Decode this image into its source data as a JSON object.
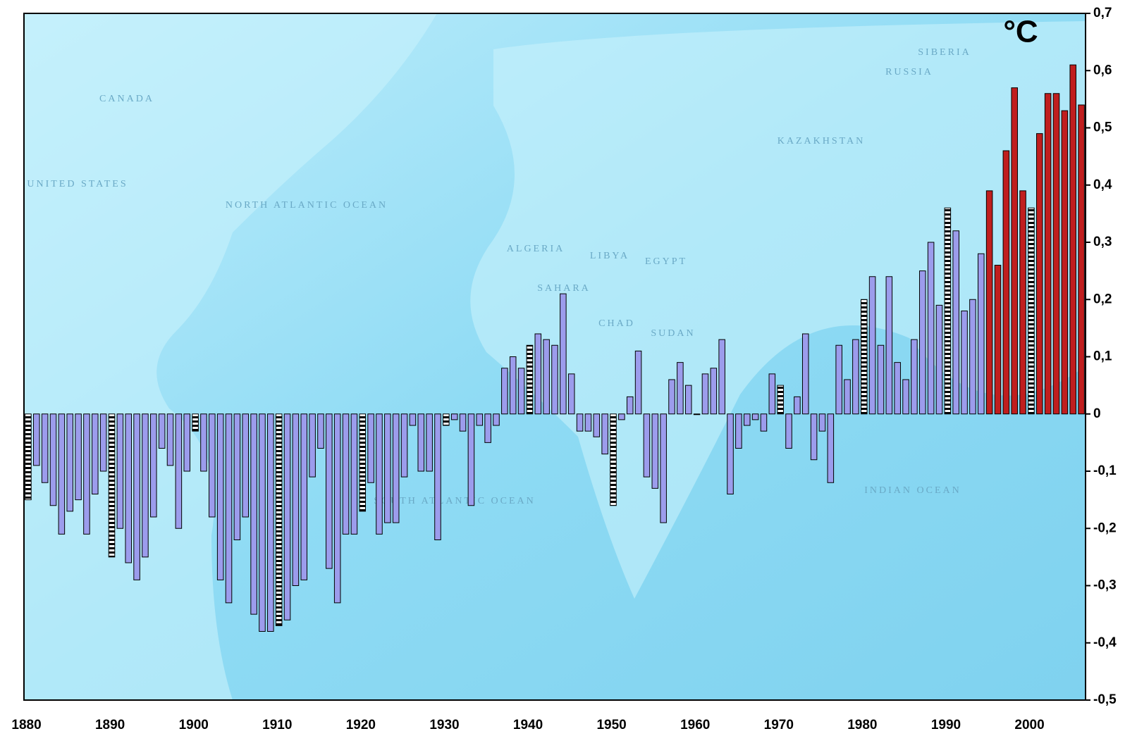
{
  "chart_data": {
    "type": "bar",
    "title": "°C",
    "x": [
      1880,
      1881,
      1882,
      1883,
      1884,
      1885,
      1886,
      1887,
      1888,
      1889,
      1890,
      1891,
      1892,
      1893,
      1894,
      1895,
      1896,
      1897,
      1898,
      1899,
      1900,
      1901,
      1902,
      1903,
      1904,
      1905,
      1906,
      1907,
      1908,
      1909,
      1910,
      1911,
      1912,
      1913,
      1914,
      1915,
      1916,
      1917,
      1918,
      1919,
      1920,
      1921,
      1922,
      1923,
      1924,
      1925,
      1926,
      1927,
      1928,
      1929,
      1930,
      1931,
      1932,
      1933,
      1934,
      1935,
      1936,
      1937,
      1938,
      1939,
      1940,
      1941,
      1942,
      1943,
      1944,
      1945,
      1946,
      1947,
      1948,
      1949,
      1950,
      1951,
      1952,
      1953,
      1954,
      1955,
      1956,
      1957,
      1958,
      1959,
      1960,
      1961,
      1962,
      1963,
      1964,
      1965,
      1966,
      1967,
      1968,
      1969,
      1970,
      1971,
      1972,
      1973,
      1974,
      1975,
      1976,
      1977,
      1978,
      1979,
      1980,
      1981,
      1982,
      1983,
      1984,
      1985,
      1986,
      1987,
      1988,
      1989,
      1990,
      1991,
      1992,
      1993,
      1994,
      1995,
      1996,
      1997,
      1998,
      1999,
      2000,
      2001,
      2002,
      2003,
      2004,
      2005,
      2006
    ],
    "values": [
      -0.15,
      -0.09,
      -0.12,
      -0.16,
      -0.21,
      -0.17,
      -0.15,
      -0.21,
      -0.14,
      -0.1,
      -0.25,
      -0.2,
      -0.26,
      -0.29,
      -0.25,
      -0.18,
      -0.06,
      -0.09,
      -0.2,
      -0.1,
      -0.03,
      -0.1,
      -0.18,
      -0.29,
      -0.33,
      -0.22,
      -0.18,
      -0.35,
      -0.38,
      -0.38,
      -0.37,
      -0.36,
      -0.3,
      -0.29,
      -0.11,
      -0.06,
      -0.27,
      -0.33,
      -0.21,
      -0.21,
      -0.17,
      -0.12,
      -0.21,
      -0.19,
      -0.19,
      -0.11,
      -0.02,
      -0.1,
      -0.1,
      -0.22,
      -0.02,
      -0.01,
      -0.03,
      -0.16,
      -0.02,
      -0.05,
      -0.02,
      0.08,
      0.1,
      0.08,
      0.12,
      0.14,
      0.13,
      0.12,
      0.21,
      0.07,
      -0.03,
      -0.03,
      -0.04,
      -0.07,
      -0.16,
      -0.01,
      0.03,
      0.11,
      -0.11,
      -0.13,
      -0.19,
      0.06,
      0.09,
      0.05,
      0,
      0.07,
      0.08,
      0.13,
      -0.14,
      -0.06,
      -0.02,
      -0.01,
      -0.03,
      0.07,
      0.05,
      -0.06,
      0.03,
      0.14,
      -0.08,
      -0.03,
      -0.12,
      0.12,
      0.06,
      0.13,
      0.2,
      0.24,
      0.12,
      0.24,
      0.09,
      0.06,
      0.13,
      0.25,
      0.3,
      0.19,
      0.36,
      0.32,
      0.18,
      0.2,
      0.28,
      0.39,
      0.26,
      0.46,
      0.57,
      0.39,
      0.36,
      0.49,
      0.56,
      0.56,
      0.53,
      0.61,
      0.54
    ],
    "color": "#9c9cec",
    "highlight_color": "#c01e1e",
    "highlight_categories": [
      1995,
      1996,
      1997,
      1998,
      1999,
      2000,
      2001,
      2002,
      2003,
      2004,
      2005,
      2006
    ],
    "hatched_categories": [
      1880,
      1890,
      1900,
      1910,
      1920,
      1930,
      1940,
      1950,
      1960,
      1970,
      1980,
      1990,
      2000
    ],
    "xlim": [
      1879.5,
      2006.5
    ],
    "xticks": [
      1880,
      1890,
      1900,
      1910,
      1920,
      1930,
      1940,
      1950,
      1960,
      1970,
      1980,
      1990,
      2000
    ],
    "ylim": [
      -0.5,
      0.7
    ],
    "yticks": [
      {
        "value": -0.5,
        "label": "-0,5"
      },
      {
        "value": -0.4,
        "label": "-0,4"
      },
      {
        "value": -0.3,
        "label": "-0,3"
      },
      {
        "value": -0.2,
        "label": "-0,2"
      },
      {
        "value": -0.1,
        "label": "-0,1"
      },
      0,
      {
        "value": 0.1,
        "label": "0,1"
      },
      {
        "value": 0.2,
        "label": "0,2"
      },
      {
        "value": 0.3,
        "label": "0,3"
      },
      {
        "value": 0.4,
        "label": "0,4"
      },
      {
        "value": 0.5,
        "label": "0,5"
      },
      {
        "value": 0.6,
        "label": "0,6"
      },
      {
        "value": 0.7,
        "label": "0,7"
      }
    ],
    "yaxis_side": "right",
    "map_labels": [
      "CANADA",
      "UNITED STATES",
      "RUSSIA",
      "SIBERIA",
      "KAZAKHSTAN",
      "ALGERIA",
      "LIBYA",
      "EGYPT",
      "SAHARA",
      "CHAD",
      "SUDAN",
      "NORTH ATLANTIC OCEAN",
      "SOUTH ATLANTIC OCEAN",
      "INDIAN OCEAN"
    ]
  }
}
